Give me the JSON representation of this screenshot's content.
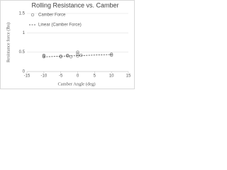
{
  "chart_data": {
    "type": "scatter",
    "title": "Rolling Resistance vs. Camber",
    "x_label": "Camber Angle (deg)",
    "y_label": "Resistance force (lbs)",
    "xlim": [
      -15,
      15
    ],
    "xticks": [
      -15,
      -10,
      -5,
      0,
      5,
      10,
      15
    ],
    "ylim": [
      0,
      1.5
    ],
    "yticks": [
      0,
      0.5,
      1,
      1.5
    ],
    "grid": true,
    "legend": "upper-left",
    "series": [
      {
        "name": "Camber Force",
        "kind": "scatter",
        "color": "#7f7f7f",
        "x": [
          -10,
          -10,
          -10,
          -5,
          -5,
          -3,
          -3,
          -2,
          0,
          0,
          0,
          1,
          10,
          10
        ],
        "values": [
          0.38,
          0.4,
          0.42,
          0.38,
          0.4,
          0.4,
          0.42,
          0.38,
          0.4,
          0.45,
          0.5,
          0.42,
          0.42,
          0.45
        ]
      },
      {
        "name": "Linear (Camber Force)",
        "kind": "line",
        "color": "#404040",
        "x": [
          -10,
          10
        ],
        "values": [
          0.38,
          0.44
        ]
      }
    ]
  }
}
